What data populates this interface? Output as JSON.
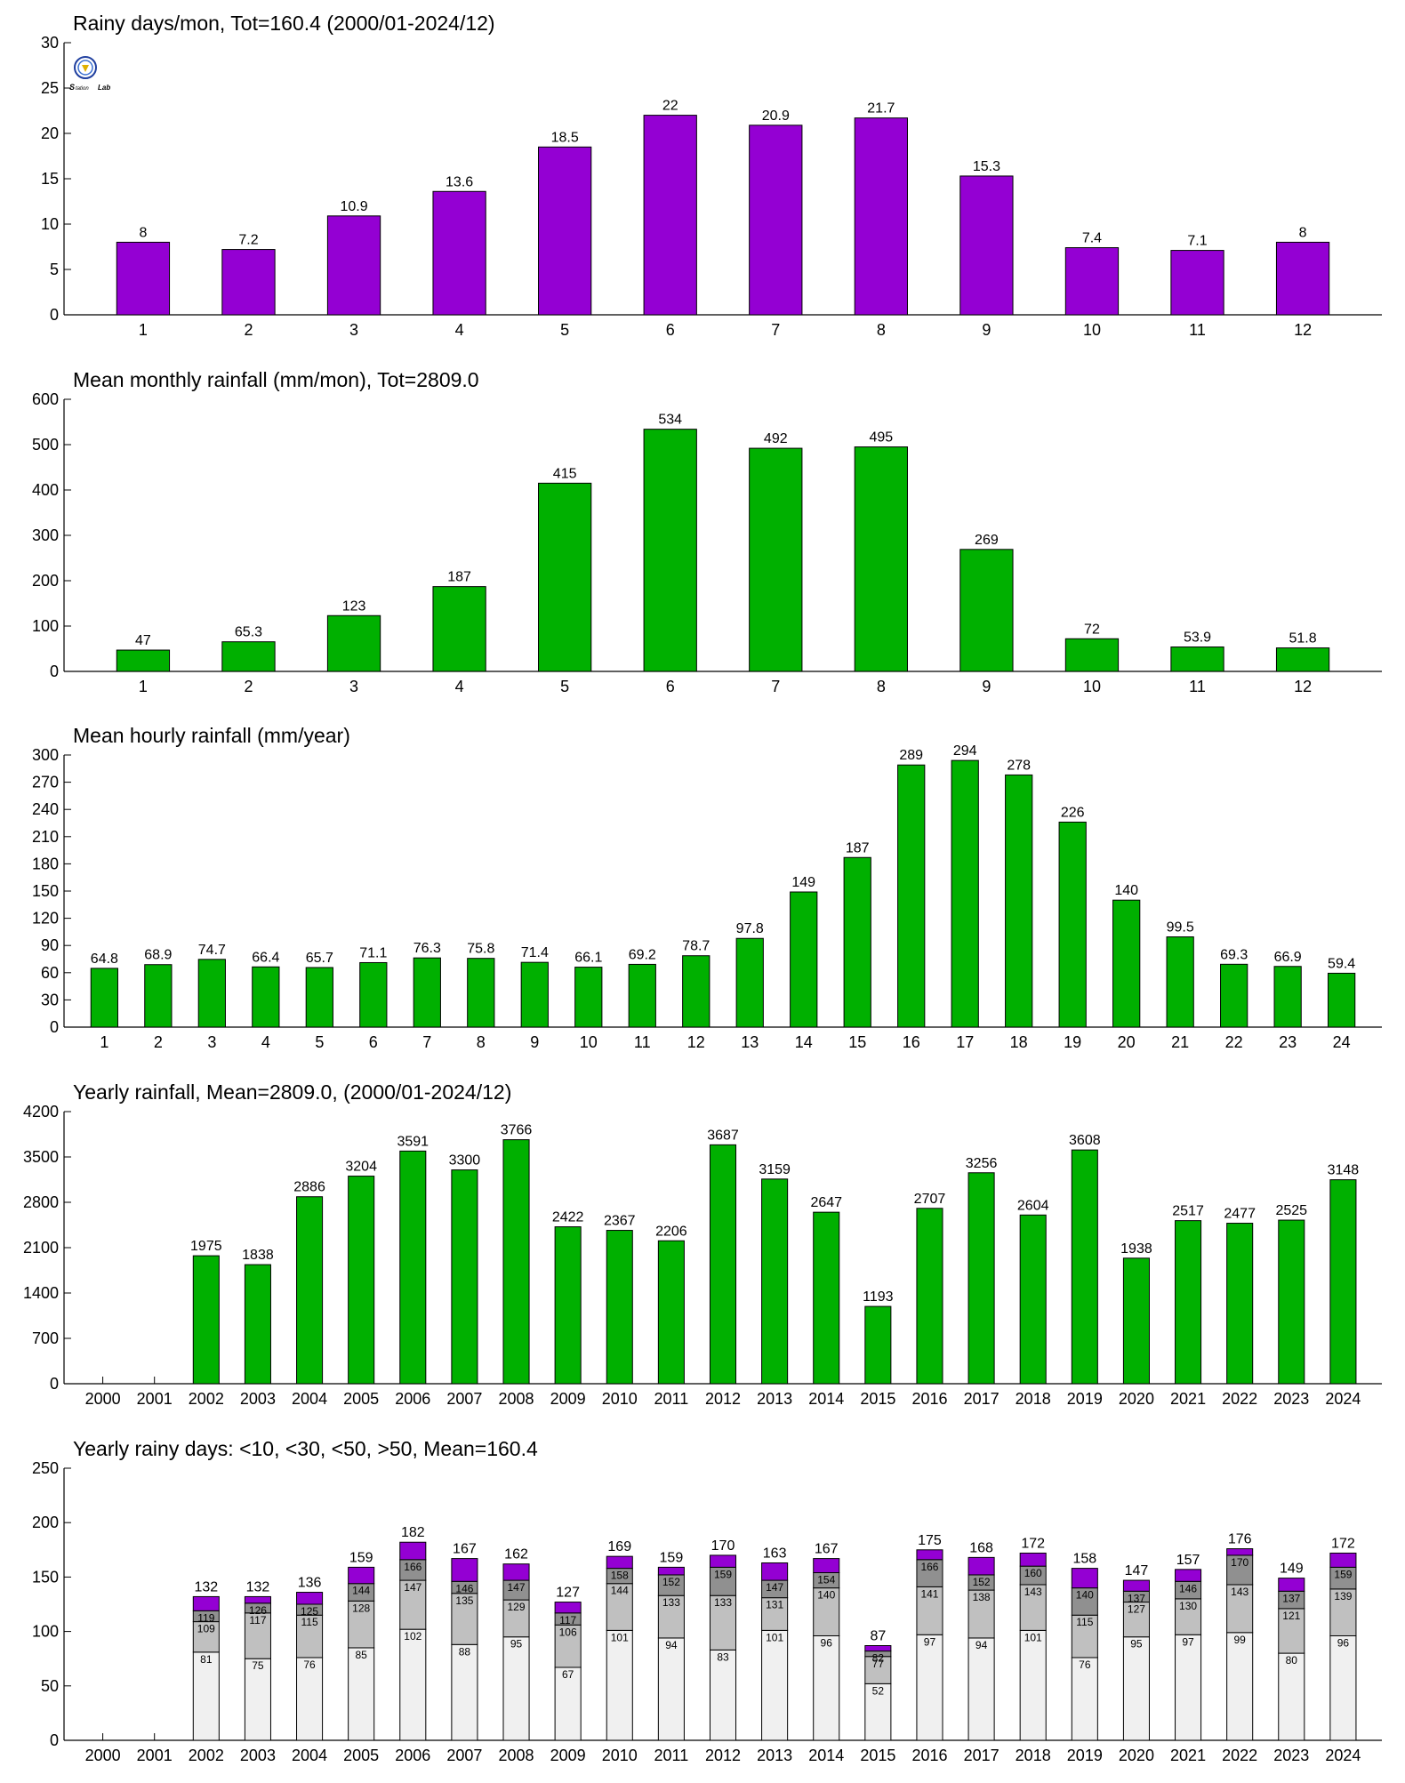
{
  "colors": {
    "purple": "#9400d3",
    "green": "#00b000",
    "band1": "#f0f0f0",
    "band2": "#c0c0c0",
    "band3": "#909090",
    "band4": "#9400d3"
  },
  "logo": {
    "icon": "station-logo-icon",
    "text": "Station Lab"
  },
  "chart_data": [
    {
      "type": "bar",
      "title": "Rainy days/mon, Tot=160.4 (2000/01-2024/12)",
      "categories": [
        "1",
        "2",
        "3",
        "4",
        "5",
        "6",
        "7",
        "8",
        "9",
        "10",
        "11",
        "12"
      ],
      "values": [
        8,
        7.2,
        10.9,
        13.6,
        18.5,
        22,
        20.9,
        21.7,
        15.3,
        7.4,
        7.1,
        8
      ],
      "labels": [
        "8",
        "7.2",
        "10.9",
        "13.6",
        "18.5",
        "22",
        "20.9",
        "21.7",
        "15.3",
        "7.4",
        "7.1",
        "8"
      ],
      "ylim": [
        0,
        30
      ],
      "yticks": [
        "0",
        "5",
        "10",
        "15",
        "20",
        "25",
        "30"
      ],
      "color": "#9400d3",
      "grid": false
    },
    {
      "type": "bar",
      "title": "Mean monthly rainfall (mm/mon), Tot=2809.0",
      "categories": [
        "1",
        "2",
        "3",
        "4",
        "5",
        "6",
        "7",
        "8",
        "9",
        "10",
        "11",
        "12"
      ],
      "values": [
        47,
        65.3,
        123,
        187,
        415,
        534,
        492,
        495,
        269,
        72,
        53.9,
        51.8
      ],
      "labels": [
        "47",
        "65.3",
        "123",
        "187",
        "415",
        "534",
        "492",
        "495",
        "269",
        "72",
        "53.9",
        "51.8"
      ],
      "ylim": [
        0,
        600
      ],
      "yticks": [
        "0",
        "100",
        "200",
        "300",
        "400",
        "500",
        "600"
      ],
      "color": "#00b000",
      "grid": false
    },
    {
      "type": "bar",
      "title": "Mean hourly rainfall (mm/year)",
      "categories": [
        "1",
        "2",
        "3",
        "4",
        "5",
        "6",
        "7",
        "8",
        "9",
        "10",
        "11",
        "12",
        "13",
        "14",
        "15",
        "16",
        "17",
        "18",
        "19",
        "20",
        "21",
        "22",
        "23",
        "24"
      ],
      "values": [
        64.8,
        68.9,
        74.7,
        66.4,
        65.7,
        71.1,
        76.3,
        75.8,
        71.4,
        66.1,
        69.2,
        78.7,
        97.8,
        149,
        187,
        289,
        294,
        278,
        226,
        140,
        99.5,
        69.3,
        66.9,
        59.4
      ],
      "labels": [
        "64.8",
        "68.9",
        "74.7",
        "66.4",
        "65.7",
        "71.1",
        "76.3",
        "75.8",
        "71.4",
        "66.1",
        "69.2",
        "78.7",
        "97.8",
        "149",
        "187",
        "289",
        "294",
        "278",
        "226",
        "140",
        "99.5",
        "69.3",
        "66.9",
        "59.4"
      ],
      "ylim": [
        0,
        300
      ],
      "yticks": [
        "0",
        "30",
        "60",
        "90",
        "120",
        "150",
        "180",
        "210",
        "240",
        "270",
        "300"
      ],
      "color": "#00b000",
      "grid": false
    },
    {
      "type": "bar",
      "title": "Yearly rainfall, Mean=2809.0, (2000/01-2024/12)",
      "categories": [
        "2000",
        "2001",
        "2002",
        "2003",
        "2004",
        "2005",
        "2006",
        "2007",
        "2008",
        "2009",
        "2010",
        "2011",
        "2012",
        "2013",
        "2014",
        "2015",
        "2016",
        "2017",
        "2018",
        "2019",
        "2020",
        "2021",
        "2022",
        "2023",
        "2024"
      ],
      "values": [
        null,
        null,
        1975,
        1838,
        2886,
        3204,
        3591,
        3300,
        3766,
        2422,
        2367,
        2206,
        3687,
        3159,
        2647,
        1193,
        2707,
        3256,
        2604,
        3608,
        1938,
        2517,
        2477,
        2525,
        3148
      ],
      "labels": [
        "",
        "",
        "1975",
        "1838",
        "2886",
        "3204",
        "3591",
        "3300",
        "3766",
        "2422",
        "2367",
        "2206",
        "3687",
        "3159",
        "2647",
        "1193",
        "2707",
        "3256",
        "2604",
        "3608",
        "1938",
        "2517",
        "2477",
        "2525",
        "3148"
      ],
      "ylim": [
        0,
        4200
      ],
      "yticks": [
        "0",
        "700",
        "1400",
        "2100",
        "2800",
        "3500",
        "4200"
      ],
      "color": "#00b000",
      "grid": false
    },
    {
      "type": "bar",
      "stacked": true,
      "title": "Yearly rainy days: <10, <30, <50, >50, Mean=160.4",
      "categories": [
        "2000",
        "2001",
        "2002",
        "2003",
        "2004",
        "2005",
        "2006",
        "2007",
        "2008",
        "2009",
        "2010",
        "2011",
        "2012",
        "2013",
        "2014",
        "2015",
        "2016",
        "2017",
        "2018",
        "2019",
        "2020",
        "2021",
        "2022",
        "2023",
        "2024"
      ],
      "cumulative": {
        "lt10": [
          null,
          null,
          81,
          75,
          76,
          85,
          102,
          88,
          95,
          67,
          101,
          94,
          83,
          101,
          96,
          52,
          97,
          94,
          101,
          76,
          95,
          97,
          99,
          80,
          96
        ],
        "lt30": [
          null,
          null,
          109,
          117,
          115,
          128,
          147,
          135,
          129,
          106,
          144,
          133,
          133,
          131,
          140,
          77,
          141,
          138,
          143,
          115,
          127,
          130,
          143,
          121,
          139
        ],
        "lt50": [
          null,
          null,
          119,
          126,
          125,
          144,
          166,
          146,
          147,
          117,
          158,
          152,
          159,
          147,
          154,
          82,
          166,
          152,
          160,
          140,
          137,
          146,
          170,
          137,
          159
        ],
        "total": [
          null,
          null,
          132,
          132,
          136,
          159,
          182,
          167,
          162,
          127,
          169,
          159,
          170,
          163,
          167,
          87,
          175,
          168,
          172,
          158,
          147,
          157,
          176,
          149,
          172
        ]
      },
      "labels": {
        "lt10": [
          "",
          "",
          "81",
          "75",
          "76",
          "85",
          "102",
          "88",
          "95",
          "67",
          "101",
          "94",
          "83",
          "101",
          "96",
          "52",
          "97",
          "94",
          "101",
          "76",
          "95",
          "97",
          "99",
          "80",
          "96"
        ],
        "lt30": [
          "",
          "",
          "109",
          "117",
          "115",
          "128",
          "147",
          "135",
          "129",
          "106",
          "144",
          "133",
          "133",
          "131",
          "140",
          "77",
          "141",
          "138",
          "143",
          "115",
          "127",
          "130",
          "143",
          "121",
          "139"
        ],
        "lt50": [
          "",
          "",
          "119",
          "126",
          "125",
          "144",
          "166",
          "146",
          "147",
          "117",
          "158",
          "152",
          "159",
          "147",
          "154",
          "82",
          "166",
          "152",
          "160",
          "140",
          "137",
          "146",
          "170",
          "137",
          "159"
        ],
        "total": [
          "",
          "",
          "132",
          "132",
          "136",
          "159",
          "182",
          "167",
          "162",
          "127",
          "169",
          "159",
          "170",
          "163",
          "167",
          "87",
          "175",
          "168",
          "172",
          "158",
          "147",
          "157",
          "176",
          "149",
          "172"
        ]
      },
      "ylim": [
        0,
        250
      ],
      "yticks": [
        "0",
        "50",
        "100",
        "150",
        "200",
        "250"
      ],
      "grid": false
    }
  ]
}
